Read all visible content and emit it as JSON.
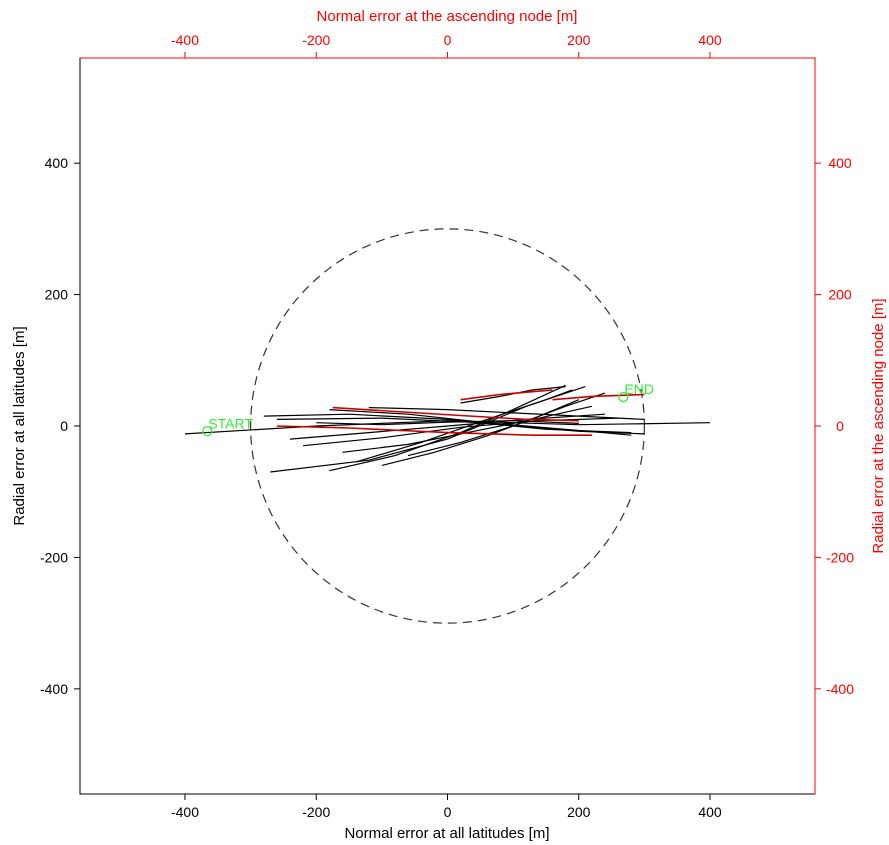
{
  "chart_data": {
    "type": "line",
    "xlabel": "Normal error at all latitudes [m]",
    "ylabel": "Radial error at all latitudes [m]",
    "x2label": "Normal error at the ascending node [m]",
    "y2label": "Radial error at the ascending node [m]",
    "xlim": [
      -560,
      560
    ],
    "ylim": [
      -560,
      560
    ],
    "x_ticks": [
      -400,
      -200,
      0,
      200,
      400
    ],
    "y_ticks": [
      -400,
      -200,
      0,
      200,
      400
    ],
    "x_tick_labels": [
      "-400",
      "-200",
      "0",
      "200",
      "400"
    ],
    "y_tick_labels": [
      "-400",
      "-200",
      "0",
      "200",
      "400"
    ],
    "grid": false,
    "colors": {
      "primary_axis": "#000000",
      "secondary_axis": "#ff0000",
      "ascending_node": "#cc0000",
      "annotation": "#33ee33",
      "circle": "#333333"
    },
    "reference_circle": {
      "radius": 300,
      "style": "dashed"
    },
    "annotations": [
      {
        "text": "START",
        "x": -366,
        "y": -8
      },
      {
        "text": "END",
        "x": 268,
        "y": 44
      }
    ],
    "series": [
      {
        "role": "all-latitudes",
        "style": "solid",
        "segments": [
          [
            [
              -400,
              -12
            ],
            [
              -200,
              0
            ],
            [
              0,
              8
            ],
            [
              200,
              2
            ],
            [
              400,
              5
            ]
          ],
          [
            [
              -180,
              -68
            ],
            [
              -80,
              -45
            ],
            [
              20,
              -10
            ],
            [
              100,
              25
            ],
            [
              180,
              62
            ]
          ],
          [
            [
              -270,
              -70
            ],
            [
              -120,
              -52
            ],
            [
              0,
              -20
            ],
            [
              120,
              30
            ],
            [
              210,
              60
            ]
          ],
          [
            [
              -140,
              -55
            ],
            [
              -40,
              -25
            ],
            [
              60,
              10
            ],
            [
              150,
              40
            ],
            [
              190,
              55
            ]
          ],
          [
            [
              -280,
              15
            ],
            [
              -150,
              18
            ],
            [
              0,
              10
            ],
            [
              150,
              -5
            ],
            [
              280,
              -10
            ]
          ],
          [
            [
              -260,
              10
            ],
            [
              -100,
              12
            ],
            [
              50,
              5
            ],
            [
              200,
              -8
            ],
            [
              300,
              -12
            ]
          ],
          [
            [
              -240,
              -20
            ],
            [
              -120,
              -10
            ],
            [
              0,
              0
            ],
            [
              120,
              10
            ],
            [
              240,
              18
            ]
          ],
          [
            [
              -220,
              -30
            ],
            [
              -100,
              -18
            ],
            [
              20,
              -2
            ],
            [
              140,
              8
            ],
            [
              260,
              12
            ]
          ],
          [
            [
              -180,
              25
            ],
            [
              -60,
              18
            ],
            [
              60,
              5
            ],
            [
              180,
              -5
            ],
            [
              280,
              -14
            ]
          ],
          [
            [
              -160,
              -40
            ],
            [
              -60,
              -28
            ],
            [
              40,
              -8
            ],
            [
              140,
              12
            ],
            [
              220,
              30
            ]
          ],
          [
            [
              -120,
              28
            ],
            [
              0,
              25
            ],
            [
              100,
              20
            ],
            [
              200,
              15
            ],
            [
              300,
              10
            ]
          ],
          [
            [
              -60,
              -45
            ],
            [
              20,
              -25
            ],
            [
              100,
              0
            ],
            [
              180,
              30
            ],
            [
              240,
              50
            ]
          ],
          [
            [
              20,
              35
            ],
            [
              80,
              45
            ],
            [
              130,
              55
            ],
            [
              180,
              60
            ]
          ],
          [
            [
              -200,
              5
            ],
            [
              -100,
              2
            ],
            [
              0,
              6
            ],
            [
              100,
              8
            ],
            [
              200,
              4
            ]
          ],
          [
            [
              -100,
              -60
            ],
            [
              -20,
              -40
            ],
            [
              60,
              -15
            ],
            [
              140,
              15
            ],
            [
              200,
              40
            ]
          ]
        ]
      },
      {
        "role": "ascending-node",
        "style": "solid",
        "segments": [
          [
            [
              -175,
              28
            ],
            [
              -80,
              22
            ],
            [
              20,
              16
            ],
            [
              120,
              10
            ],
            [
              200,
              8
            ]
          ],
          [
            [
              20,
              40
            ],
            [
              80,
              48
            ],
            [
              160,
              55
            ]
          ],
          [
            [
              -260,
              0
            ],
            [
              -150,
              -3
            ],
            [
              0,
              -10
            ],
            [
              130,
              -14
            ],
            [
              220,
              -14
            ]
          ],
          [
            [
              160,
              40
            ],
            [
              220,
              45
            ],
            [
              300,
              48
            ]
          ]
        ]
      }
    ]
  }
}
